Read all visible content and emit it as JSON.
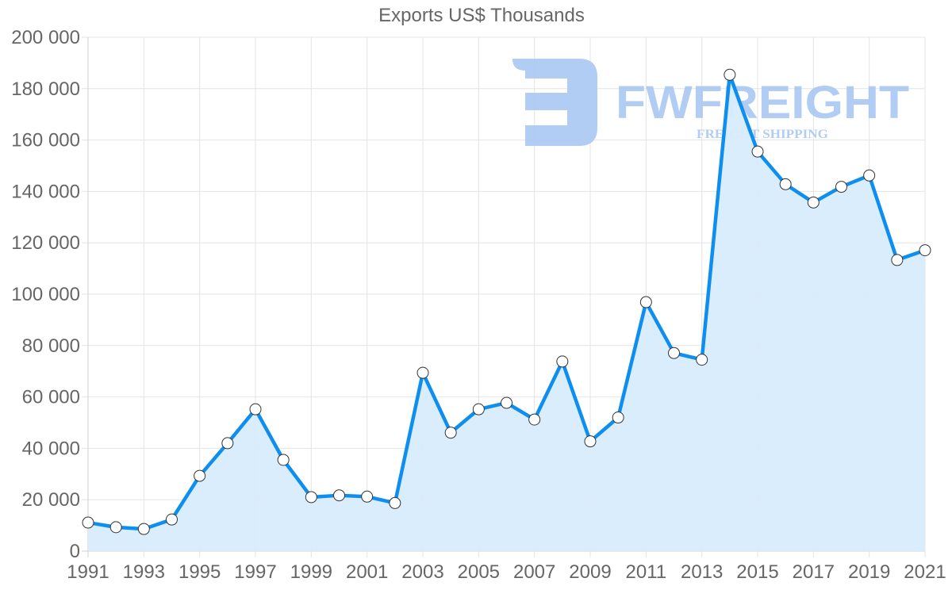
{
  "chart_data": {
    "type": "area",
    "title": "Exports US$ Thousands",
    "xlabel": "",
    "ylabel": "",
    "ylim": [
      0,
      200000
    ],
    "grid": true,
    "legend": null,
    "x": [
      1991,
      1992,
      1993,
      1994,
      1995,
      1996,
      1997,
      1998,
      1999,
      2000,
      2001,
      2002,
      2003,
      2004,
      2005,
      2006,
      2007,
      2008,
      2009,
      2010,
      2011,
      2012,
      2013,
      2014,
      2015,
      2016,
      2017,
      2018,
      2019,
      2020,
      2021
    ],
    "series": [
      {
        "name": "Exports US$ Thousands",
        "values": [
          11100,
          9300,
          8600,
          12300,
          29300,
          42000,
          55200,
          35500,
          21000,
          21700,
          21200,
          18700,
          69400,
          46100,
          55200,
          57700,
          51200,
          73800,
          42700,
          52000,
          96900,
          77100,
          74500,
          185400,
          155500,
          142800,
          135700,
          141800,
          146200,
          113300,
          117100
        ]
      }
    ],
    "y_ticks": [
      "0",
      "20 000",
      "40 000",
      "60 000",
      "80 000",
      "100 000",
      "120 000",
      "140 000",
      "160 000",
      "180 000",
      "200 000"
    ],
    "y_tick_values": [
      0,
      20000,
      40000,
      60000,
      80000,
      100000,
      120000,
      140000,
      160000,
      180000,
      200000
    ],
    "x_tick_labels": [
      "1991",
      "1993",
      "1995",
      "1997",
      "1999",
      "2001",
      "2003",
      "2005",
      "2007",
      "2009",
      "2011",
      "2013",
      "2015",
      "2017",
      "2019",
      "2021"
    ],
    "colors": {
      "line": "#0e8ff0",
      "fill": "#d8ecfc",
      "point_fill": "#ffffff",
      "point_stroke": "#333333",
      "watermark": "#a9c8f2"
    }
  },
  "watermark": {
    "brand": "FWFREIGHT",
    "tagline": "FREIGHT SHIPPING"
  }
}
